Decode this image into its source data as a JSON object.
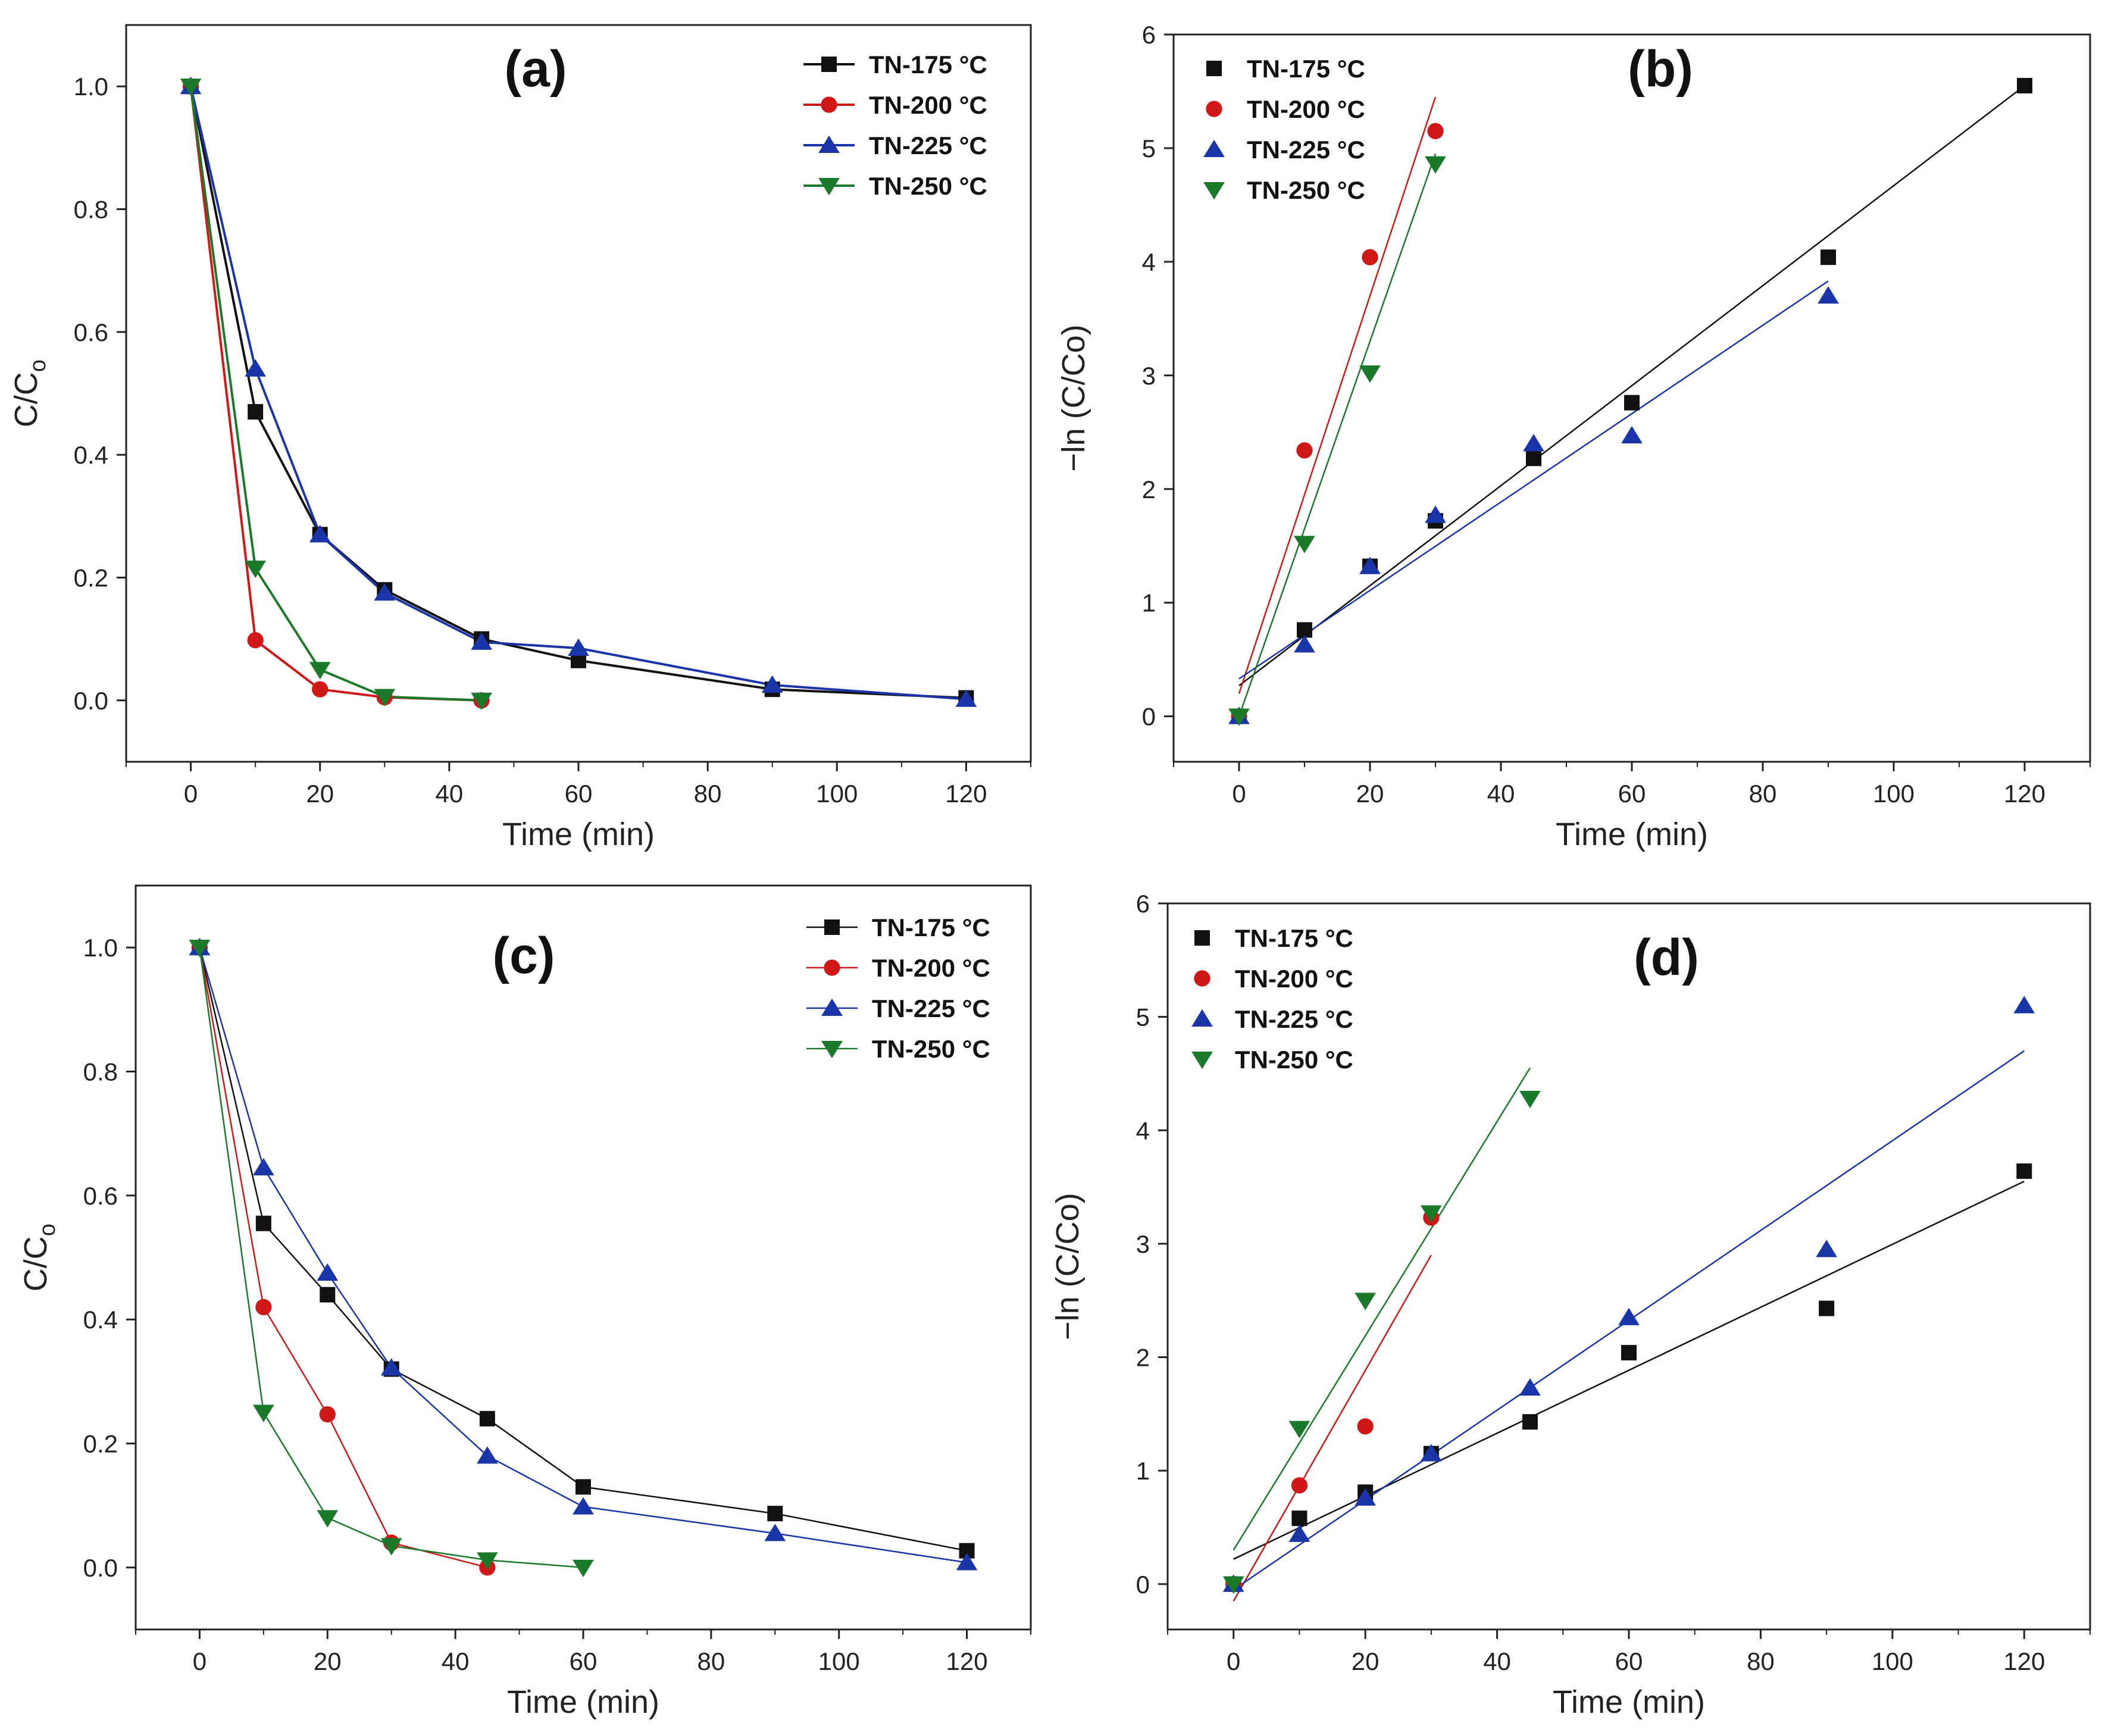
{
  "colors": {
    "TN-175": "#111111",
    "TN-200": "#d01818",
    "TN-225": "#1a35a8",
    "TN-250": "#1b7a2a"
  },
  "chart_data": [
    {
      "id": "a",
      "type": "line",
      "panel_label": "(a)",
      "xlabel": "Time (min)",
      "ylabel_main": "C/C",
      "ylabel_sub": "o",
      "xlim": [
        -10,
        130
      ],
      "ylim": [
        -0.1,
        1.1
      ],
      "xticks": [
        0,
        20,
        40,
        60,
        80,
        100,
        120
      ],
      "yticks": [
        0.0,
        0.2,
        0.4,
        0.6,
        0.8,
        1.0
      ],
      "ytick_labels": [
        "0.0",
        "0.2",
        "0.4",
        "0.6",
        "0.8",
        "1.0"
      ],
      "legend_position": "top-right",
      "grid": false,
      "series": [
        {
          "name": "TN-175 °C",
          "key": "TN-175",
          "marker": "square",
          "x": [
            0,
            10,
            20,
            30,
            45,
            60,
            90,
            120
          ],
          "y": [
            1.0,
            0.47,
            0.27,
            0.18,
            0.1,
            0.065,
            0.018,
            0.004
          ]
        },
        {
          "name": "TN-200 °C",
          "key": "TN-200",
          "marker": "circle",
          "x": [
            0,
            10,
            20,
            30,
            45
          ],
          "y": [
            1.0,
            0.098,
            0.018,
            0.005,
            0.0
          ]
        },
        {
          "name": "TN-225 °C",
          "key": "TN-225",
          "marker": "triangle-up",
          "x": [
            0,
            10,
            20,
            30,
            45,
            60,
            90,
            120
          ],
          "y": [
            1.0,
            0.54,
            0.27,
            0.175,
            0.095,
            0.085,
            0.025,
            0.002
          ]
        },
        {
          "name": "TN-250 °C",
          "key": "TN-250",
          "marker": "triangle-down",
          "x": [
            0,
            10,
            20,
            30,
            45
          ],
          "y": [
            1.0,
            0.215,
            0.05,
            0.006,
            0.0
          ]
        }
      ]
    },
    {
      "id": "b",
      "type": "scatter",
      "panel_label": "(b)",
      "xlabel": "Time (min)",
      "ylabel_main": "−ln (C/Co)",
      "ylabel_sub": "",
      "xlim": [
        -10,
        130
      ],
      "ylim": [
        -0.4,
        6
      ],
      "xticks": [
        0,
        20,
        40,
        60,
        80,
        100,
        120
      ],
      "yticks": [
        0,
        1,
        2,
        3,
        4,
        5,
        6
      ],
      "ytick_labels": [
        "0",
        "1",
        "2",
        "3",
        "4",
        "5",
        "6"
      ],
      "legend_position": "top-left",
      "grid": false,
      "series": [
        {
          "name": "TN-175 °C",
          "key": "TN-175",
          "marker": "square",
          "x": [
            0,
            10,
            20,
            30,
            45,
            60,
            90,
            120
          ],
          "y": [
            0,
            0.76,
            1.32,
            1.72,
            2.27,
            2.76,
            4.04,
            5.55
          ],
          "fit": [
            [
              0,
              0.27
            ],
            [
              120,
              5.55
            ]
          ]
        },
        {
          "name": "TN-200 °C",
          "key": "TN-200",
          "marker": "circle",
          "x": [
            0,
            10,
            20,
            30
          ],
          "y": [
            0,
            2.34,
            4.04,
            5.15
          ],
          "fit": [
            [
              0,
              0.2
            ],
            [
              30,
              5.45
            ]
          ]
        },
        {
          "name": "TN-225 °C",
          "key": "TN-225",
          "marker": "triangle-up",
          "x": [
            0,
            10,
            20,
            30,
            45,
            60,
            90
          ],
          "y": [
            0,
            0.63,
            1.32,
            1.77,
            2.4,
            2.47,
            3.7
          ],
          "fit": [
            [
              0,
              0.33
            ],
            [
              90,
              3.83
            ]
          ]
        },
        {
          "name": "TN-250 °C",
          "key": "TN-250",
          "marker": "triangle-down",
          "x": [
            0,
            10,
            20,
            30
          ],
          "y": [
            0,
            1.52,
            3.02,
            4.86
          ],
          "fit": [
            [
              0,
              0.0
            ],
            [
              30,
              4.95
            ]
          ]
        }
      ]
    },
    {
      "id": "c",
      "type": "line",
      "panel_label": "(c)",
      "xlabel": "Time (min)",
      "ylabel_main": "C/C",
      "ylabel_sub": "o",
      "xlim": [
        -10,
        130
      ],
      "ylim": [
        -0.1,
        1.1
      ],
      "xticks": [
        0,
        20,
        40,
        60,
        80,
        100,
        120
      ],
      "yticks": [
        0.0,
        0.2,
        0.4,
        0.6,
        0.8,
        1.0
      ],
      "ytick_labels": [
        "0.0",
        "0.2",
        "0.4",
        "0.6",
        "0.8",
        "1.0"
      ],
      "legend_position": "top-right",
      "grid": false,
      "series": [
        {
          "name": "TN-175 °C",
          "key": "TN-175",
          "marker": "square",
          "x": [
            0,
            10,
            20,
            30,
            45,
            60,
            90,
            120
          ],
          "y": [
            1.0,
            0.555,
            0.44,
            0.32,
            0.24,
            0.13,
            0.087,
            0.027
          ]
        },
        {
          "name": "TN-200 °C",
          "key": "TN-200",
          "marker": "circle",
          "x": [
            0,
            10,
            20,
            30,
            45
          ],
          "y": [
            1.0,
            0.42,
            0.247,
            0.04,
            0.0
          ]
        },
        {
          "name": "TN-225 °C",
          "key": "TN-225",
          "marker": "triangle-up",
          "x": [
            0,
            10,
            20,
            30,
            45,
            60,
            90,
            120
          ],
          "y": [
            1.0,
            0.645,
            0.475,
            0.322,
            0.18,
            0.098,
            0.055,
            0.008
          ]
        },
        {
          "name": "TN-250 °C",
          "key": "TN-250",
          "marker": "triangle-down",
          "x": [
            0,
            10,
            20,
            30,
            45,
            60
          ],
          "y": [
            1.0,
            0.25,
            0.08,
            0.035,
            0.012,
            0.0
          ]
        }
      ]
    },
    {
      "id": "d",
      "type": "scatter",
      "panel_label": "(d)",
      "xlabel": "Time (min)",
      "ylabel_main": "−ln (C/Co)",
      "ylabel_sub": "",
      "xlim": [
        -10,
        130
      ],
      "ylim": [
        -0.4,
        6
      ],
      "xticks": [
        0,
        20,
        40,
        60,
        80,
        100,
        120
      ],
      "yticks": [
        0,
        1,
        2,
        3,
        4,
        5,
        6
      ],
      "ytick_labels": [
        "0",
        "1",
        "2",
        "3",
        "4",
        "5",
        "6"
      ],
      "legend_position": "top-left",
      "grid": false,
      "series": [
        {
          "name": "TN-175 °C",
          "key": "TN-175",
          "marker": "square",
          "x": [
            0,
            10,
            20,
            30,
            45,
            60,
            90,
            120
          ],
          "y": [
            0,
            0.58,
            0.81,
            1.15,
            1.43,
            2.04,
            2.43,
            3.64
          ],
          "fit": [
            [
              0,
              0.22
            ],
            [
              120,
              3.55
            ]
          ]
        },
        {
          "name": "TN-200 °C",
          "key": "TN-200",
          "marker": "circle",
          "x": [
            0,
            10,
            20,
            30
          ],
          "y": [
            0,
            0.87,
            1.39,
            3.23
          ],
          "fit": [
            [
              0,
              -0.15
            ],
            [
              30,
              2.9
            ]
          ]
        },
        {
          "name": "TN-225 °C",
          "key": "TN-225",
          "marker": "triangle-up",
          "x": [
            0,
            10,
            20,
            30,
            45,
            60,
            90,
            120
          ],
          "y": [
            0,
            0.44,
            0.76,
            1.15,
            1.73,
            2.35,
            2.95,
            5.1
          ],
          "fit": [
            [
              0,
              -0.05
            ],
            [
              120,
              4.7
            ]
          ]
        },
        {
          "name": "TN-250 °C",
          "key": "TN-250",
          "marker": "triangle-down",
          "x": [
            0,
            10,
            20,
            30,
            45
          ],
          "y": [
            0,
            1.37,
            2.5,
            3.27,
            4.28
          ],
          "fit": [
            [
              0,
              0.3
            ],
            [
              45,
              4.55
            ]
          ]
        }
      ]
    }
  ]
}
